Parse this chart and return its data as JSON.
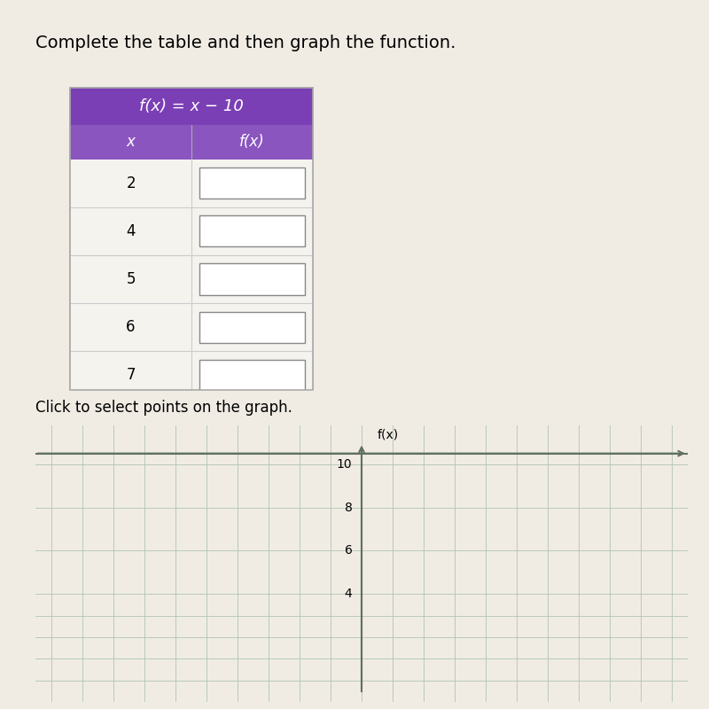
{
  "title": "Complete the table and then graph the function.",
  "function_label": "f(x) = x − 10",
  "col_headers": [
    "x",
    "f(x)"
  ],
  "x_values": [
    2,
    4,
    5,
    6,
    7
  ],
  "subtitle": "Click to select points on the graph.",
  "bg_color": "#f0ece4",
  "table_header_color": "#7b3fb5",
  "table_subheader_color": "#8b55c0",
  "table_border_color": "#888888",
  "table_cell_bg": "#ffffff",
  "table_row_bg": "#f5f3ee",
  "grid_color": "#b0c4b0",
  "axis_color": "#607060",
  "y_ticks": [
    4,
    6,
    8,
    10
  ],
  "y_label": "f(x)",
  "title_fontsize": 14,
  "cell_text_fontsize": 12
}
